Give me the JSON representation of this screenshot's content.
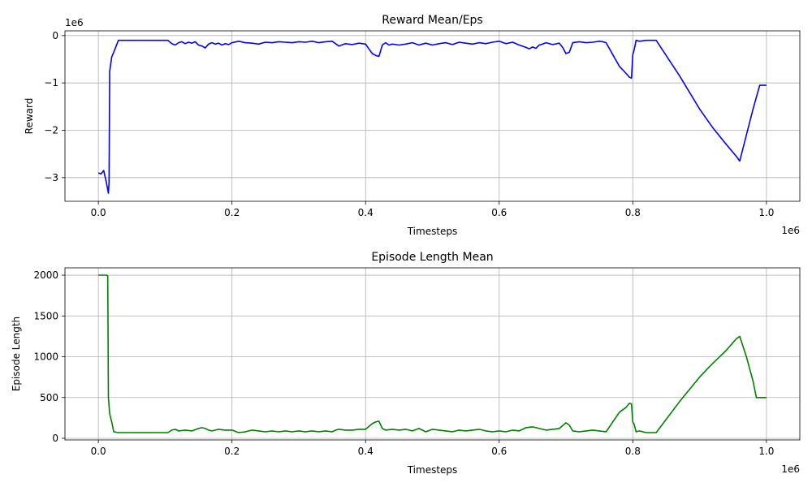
{
  "chart_data": [
    {
      "type": "line",
      "title": "Reward Mean/Eps",
      "xlabel": "Timesteps",
      "ylabel": "Reward",
      "x_offset_text": "1e6",
      "y_offset_text": "1e6",
      "xlim": [
        -0.05,
        1.05
      ],
      "ylim": [
        -3.5,
        0.1
      ],
      "x_ticks": [
        0.0,
        0.2,
        0.4,
        0.6,
        0.8,
        1.0
      ],
      "x_tick_labels": [
        "0.0",
        "0.2",
        "0.4",
        "0.6",
        "0.8",
        "1.0"
      ],
      "y_ticks": [
        -3,
        -2,
        -1,
        0
      ],
      "y_tick_labels": [
        "−3",
        "−2",
        "−1",
        "0"
      ],
      "grid": true,
      "color": "#0000ff",
      "series": [
        {
          "x": [
            0.0,
            0.004,
            0.008,
            0.012,
            0.015,
            0.016,
            0.017,
            0.02,
            0.023,
            0.03,
            0.05,
            0.08,
            0.104,
            0.11,
            0.115,
            0.12,
            0.125,
            0.13,
            0.135,
            0.14,
            0.145,
            0.15,
            0.155,
            0.16,
            0.165,
            0.17,
            0.175,
            0.18,
            0.185,
            0.19,
            0.195,
            0.2,
            0.21,
            0.22,
            0.23,
            0.24,
            0.25,
            0.26,
            0.27,
            0.28,
            0.29,
            0.3,
            0.31,
            0.32,
            0.33,
            0.34,
            0.35,
            0.36,
            0.37,
            0.38,
            0.39,
            0.4,
            0.405,
            0.41,
            0.415,
            0.42,
            0.425,
            0.43,
            0.435,
            0.44,
            0.45,
            0.46,
            0.47,
            0.48,
            0.49,
            0.5,
            0.51,
            0.52,
            0.53,
            0.54,
            0.55,
            0.56,
            0.57,
            0.58,
            0.59,
            0.6,
            0.61,
            0.62,
            0.63,
            0.64,
            0.645,
            0.65,
            0.655,
            0.66,
            0.665,
            0.67,
            0.68,
            0.69,
            0.695,
            0.7,
            0.705,
            0.71,
            0.72,
            0.73,
            0.74,
            0.75,
            0.755,
            0.76,
            0.77,
            0.78,
            0.79,
            0.795,
            0.798,
            0.8,
            0.802,
            0.805,
            0.81,
            0.82,
            0.83,
            0.835,
            0.87,
            0.9,
            0.915,
            0.92,
            0.94,
            0.955,
            0.96,
            0.97,
            0.98,
            0.985,
            0.99,
            1.0
          ],
          "y": [
            -2.9,
            -2.92,
            -2.85,
            -3.1,
            -3.33,
            -3.1,
            -0.75,
            -0.45,
            -0.35,
            -0.1,
            -0.1,
            -0.1,
            -0.1,
            -0.17,
            -0.2,
            -0.15,
            -0.13,
            -0.17,
            -0.14,
            -0.16,
            -0.13,
            -0.2,
            -0.22,
            -0.26,
            -0.18,
            -0.15,
            -0.18,
            -0.16,
            -0.2,
            -0.17,
            -0.19,
            -0.15,
            -0.12,
            -0.15,
            -0.16,
            -0.18,
            -0.14,
            -0.15,
            -0.13,
            -0.14,
            -0.15,
            -0.13,
            -0.14,
            -0.12,
            -0.15,
            -0.13,
            -0.12,
            -0.22,
            -0.17,
            -0.19,
            -0.16,
            -0.18,
            -0.28,
            -0.38,
            -0.42,
            -0.44,
            -0.2,
            -0.15,
            -0.2,
            -0.18,
            -0.2,
            -0.18,
            -0.15,
            -0.2,
            -0.16,
            -0.2,
            -0.17,
            -0.15,
            -0.19,
            -0.14,
            -0.16,
            -0.18,
            -0.15,
            -0.17,
            -0.14,
            -0.12,
            -0.17,
            -0.14,
            -0.2,
            -0.25,
            -0.28,
            -0.24,
            -0.27,
            -0.2,
            -0.18,
            -0.15,
            -0.19,
            -0.16,
            -0.25,
            -0.38,
            -0.35,
            -0.15,
            -0.13,
            -0.15,
            -0.14,
            -0.12,
            -0.13,
            -0.15,
            -0.4,
            -0.65,
            -0.8,
            -0.88,
            -0.9,
            -0.4,
            -0.3,
            -0.1,
            -0.12,
            -0.1,
            -0.1,
            -0.1,
            -0.85,
            -1.55,
            -1.85,
            -1.95,
            -2.3,
            -2.55,
            -2.65,
            -2.1,
            -1.55,
            -1.3,
            -1.05,
            -1.05
          ]
        }
      ]
    },
    {
      "type": "line",
      "title": "Episode Length Mean",
      "xlabel": "Timesteps",
      "ylabel": "Episode Length",
      "x_offset_text": "1e6",
      "xlim": [
        -0.05,
        1.05
      ],
      "ylim": [
        -20,
        2090
      ],
      "x_ticks": [
        0.0,
        0.2,
        0.4,
        0.6,
        0.8,
        1.0
      ],
      "x_tick_labels": [
        "0.0",
        "0.2",
        "0.4",
        "0.6",
        "0.8",
        "1.0"
      ],
      "y_ticks": [
        0,
        500,
        1000,
        1500,
        2000
      ],
      "y_tick_labels": [
        "0",
        "500",
        "1000",
        "1500",
        "2000"
      ],
      "grid": true,
      "color": "#008000",
      "series": [
        {
          "x": [
            0.0,
            0.012,
            0.014,
            0.015,
            0.017,
            0.02,
            0.023,
            0.03,
            0.06,
            0.104,
            0.11,
            0.115,
            0.12,
            0.13,
            0.14,
            0.15,
            0.155,
            0.16,
            0.165,
            0.17,
            0.18,
            0.19,
            0.2,
            0.21,
            0.22,
            0.23,
            0.24,
            0.25,
            0.26,
            0.27,
            0.28,
            0.29,
            0.3,
            0.31,
            0.32,
            0.33,
            0.34,
            0.35,
            0.355,
            0.36,
            0.37,
            0.38,
            0.39,
            0.4,
            0.41,
            0.415,
            0.42,
            0.425,
            0.43,
            0.44,
            0.45,
            0.46,
            0.47,
            0.48,
            0.49,
            0.5,
            0.51,
            0.52,
            0.53,
            0.54,
            0.55,
            0.56,
            0.57,
            0.58,
            0.59,
            0.6,
            0.61,
            0.62,
            0.63,
            0.64,
            0.65,
            0.66,
            0.67,
            0.68,
            0.69,
            0.7,
            0.705,
            0.71,
            0.72,
            0.73,
            0.74,
            0.75,
            0.76,
            0.77,
            0.78,
            0.79,
            0.795,
            0.798,
            0.8,
            0.802,
            0.805,
            0.81,
            0.82,
            0.83,
            0.835,
            0.87,
            0.9,
            0.915,
            0.92,
            0.94,
            0.955,
            0.96,
            0.97,
            0.98,
            0.985,
            0.99,
            1.0
          ],
          "y": [
            2000,
            2000,
            1990,
            500,
            300,
            200,
            80,
            70,
            70,
            70,
            100,
            110,
            90,
            100,
            90,
            120,
            130,
            120,
            100,
            90,
            110,
            100,
            100,
            70,
            80,
            100,
            90,
            80,
            90,
            80,
            90,
            80,
            90,
            80,
            90,
            80,
            90,
            80,
            100,
            110,
            100,
            100,
            110,
            110,
            180,
            200,
            210,
            120,
            100,
            110,
            100,
            110,
            90,
            120,
            80,
            110,
            100,
            90,
            80,
            100,
            90,
            100,
            110,
            90,
            80,
            90,
            80,
            100,
            90,
            130,
            140,
            120,
            100,
            110,
            120,
            190,
            160,
            90,
            80,
            90,
            100,
            90,
            80,
            200,
            320,
            380,
            430,
            420,
            200,
            170,
            80,
            90,
            70,
            70,
            70,
            450,
            750,
            880,
            920,
            1080,
            1220,
            1250,
            1000,
            700,
            500,
            500,
            500
          ]
        }
      ]
    }
  ]
}
